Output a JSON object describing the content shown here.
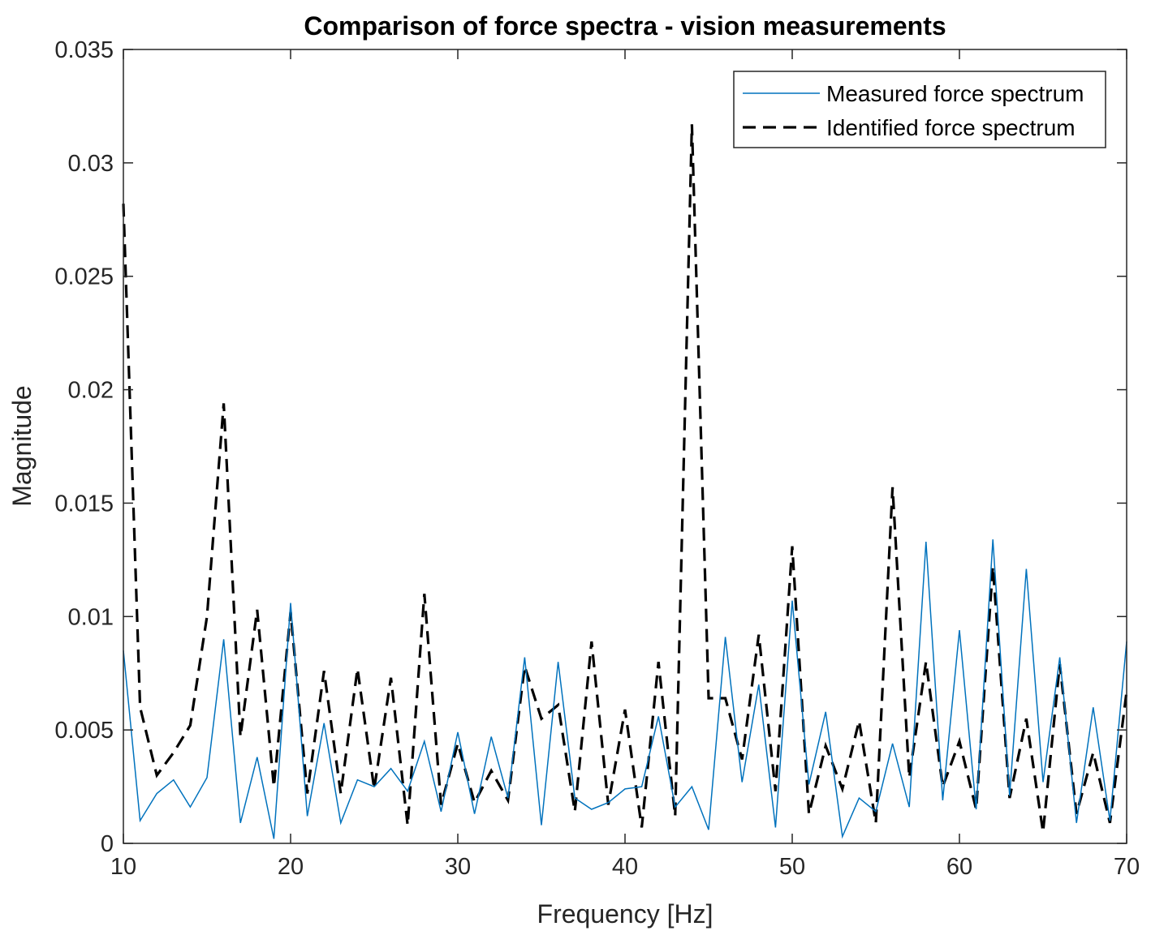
{
  "chart_data": {
    "type": "line",
    "title": "Comparison of force spectra - vision measurements",
    "xlabel": "Frequency [Hz]",
    "ylabel": "Magnitude",
    "xlim": [
      10,
      70
    ],
    "ylim": [
      0,
      0.035
    ],
    "xticks": [
      10,
      20,
      30,
      40,
      50,
      60,
      70
    ],
    "xtick_labels": [
      "10",
      "20",
      "30",
      "40",
      "50",
      "60",
      "70"
    ],
    "yticks": [
      0,
      0.005,
      0.01,
      0.015,
      0.02,
      0.025,
      0.03,
      0.035
    ],
    "ytick_labels": [
      "0",
      "0.005",
      "0.01",
      "0.015",
      "0.02",
      "0.025",
      "0.03",
      "0.035"
    ],
    "grid": false,
    "legend_position": "top-right",
    "x": [
      10,
      11,
      12,
      13,
      14,
      15,
      16,
      17,
      18,
      19,
      20,
      21,
      22,
      23,
      24,
      25,
      26,
      27,
      28,
      29,
      30,
      31,
      32,
      33,
      34,
      35,
      36,
      37,
      38,
      39,
      40,
      41,
      42,
      43,
      44,
      45,
      46,
      47,
      48,
      49,
      50,
      51,
      52,
      53,
      54,
      55,
      56,
      57,
      58,
      59,
      60,
      61,
      62,
      63,
      64,
      65,
      66,
      67,
      68,
      69,
      70
    ],
    "series": [
      {
        "name": "Measured force spectrum",
        "color": "#0072BD",
        "style": "solid",
        "values": [
          0.0085,
          0.001,
          0.0022,
          0.0028,
          0.0016,
          0.0029,
          0.009,
          0.0009,
          0.0038,
          0.0002,
          0.0106,
          0.0012,
          0.0053,
          0.0009,
          0.0028,
          0.0025,
          0.0033,
          0.0023,
          0.0045,
          0.0014,
          0.0049,
          0.0013,
          0.0047,
          0.002,
          0.0082,
          0.0008,
          0.008,
          0.002,
          0.0015,
          0.0018,
          0.0024,
          0.0025,
          0.0056,
          0.0016,
          0.0025,
          0.0006,
          0.0091,
          0.0027,
          0.007,
          0.0007,
          0.0107,
          0.0026,
          0.0058,
          0.0003,
          0.002,
          0.0014,
          0.0044,
          0.0016,
          0.0133,
          0.0019,
          0.0094,
          0.0015,
          0.0134,
          0.0021,
          0.0121,
          0.0027,
          0.0082,
          0.0009,
          0.006,
          0.001,
          0.0089
        ]
      },
      {
        "name": "Identified force spectrum",
        "color": "#000000",
        "style": "dashed",
        "values": [
          0.0282,
          0.006,
          0.003,
          0.004,
          0.0052,
          0.01,
          0.0194,
          0.0047,
          0.0103,
          0.0025,
          0.0102,
          0.0022,
          0.0076,
          0.0022,
          0.0077,
          0.0024,
          0.0073,
          0.0008,
          0.011,
          0.0017,
          0.0044,
          0.0018,
          0.0032,
          0.0019,
          0.0078,
          0.0055,
          0.0061,
          0.0014,
          0.0089,
          0.0017,
          0.0059,
          0.0007,
          0.008,
          0.0012,
          0.0317,
          0.0064,
          0.0064,
          0.0037,
          0.0092,
          0.0023,
          0.0131,
          0.0013,
          0.0043,
          0.0024,
          0.0054,
          0.0009,
          0.0157,
          0.0029,
          0.008,
          0.0025,
          0.0045,
          0.0015,
          0.0122,
          0.002,
          0.0055,
          0.0005,
          0.0079,
          0.0013,
          0.004,
          0.0009,
          0.0067
        ]
      }
    ]
  }
}
